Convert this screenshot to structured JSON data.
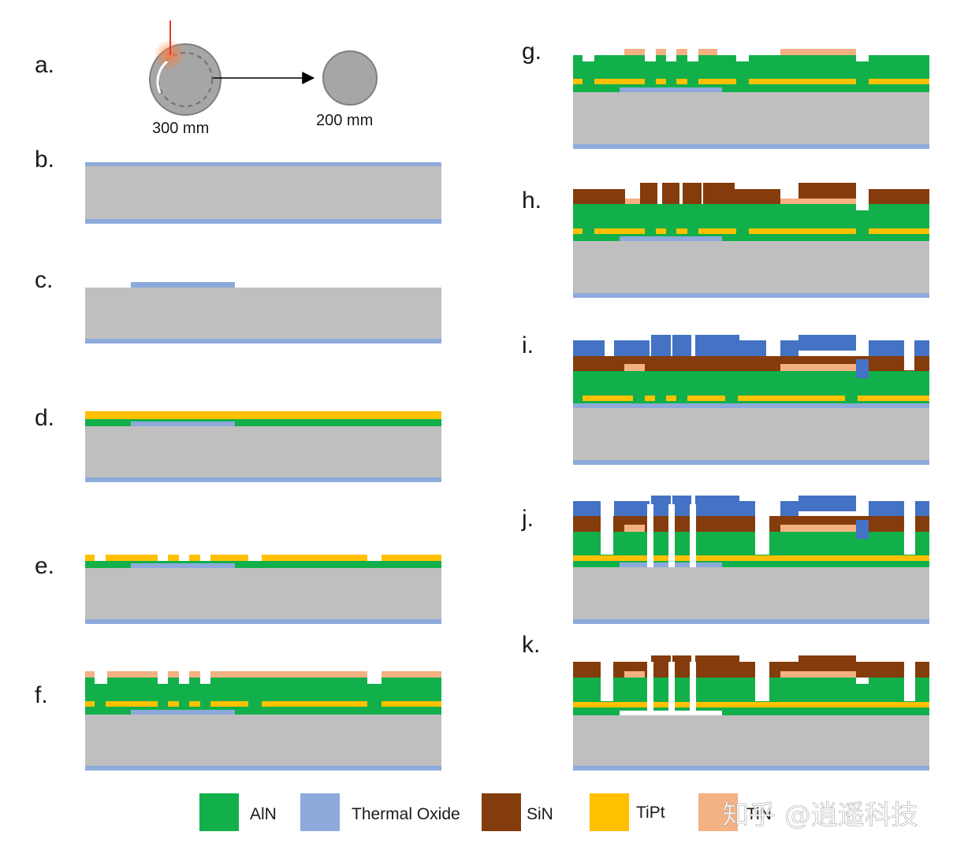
{
  "figure": {
    "steps": {
      "a": "a.",
      "b": "b.",
      "c": "c.",
      "d": "d.",
      "e": "e.",
      "f": "f.",
      "g": "g.",
      "h": "h.",
      "i": "i.",
      "j": "j.",
      "k": "k."
    },
    "wafer": {
      "source_size": "300 mm",
      "target_size": "200 mm"
    }
  },
  "legend": {
    "items": [
      {
        "label": "AlN",
        "color": "#12b04a"
      },
      {
        "label": "Thermal Oxide",
        "color": "#8eaadb"
      },
      {
        "label": "SiN",
        "color": "#843c0c"
      },
      {
        "label": "TiPt",
        "color": "#ffc000"
      },
      {
        "label": "TiN",
        "color": "#f4b183"
      }
    ]
  },
  "watermark": "知乎 @逍遥科技",
  "colors": {
    "silicon": "#bfbfbf",
    "thermal_oxide": "#8eaadb",
    "aln": "#12b04a",
    "tipt": "#ffc000",
    "tin": "#f4b183",
    "sin": "#843c0c",
    "blue_layer": "#4472c4",
    "void": "#ffffff"
  }
}
